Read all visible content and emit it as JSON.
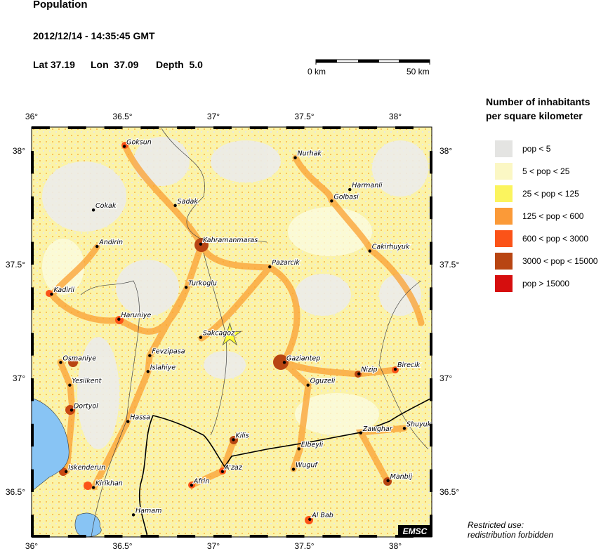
{
  "header": {
    "title": "Population",
    "datetime": "2012/12/14 - 14:35:45 GMT",
    "lat": "Lat 37.19",
    "lon": "Lon  37.09",
    "depth": "Depth  5.0"
  },
  "scale_bar": {
    "start_label": "0 km",
    "end_label": "50 km"
  },
  "map": {
    "lon_range": [
      36.0,
      38.2
    ],
    "lat_range": [
      36.3,
      38.1
    ],
    "lon_ticks": [
      {
        "v": 36,
        "label": "36°"
      },
      {
        "v": 36.5,
        "label": "36.5°"
      },
      {
        "v": 37,
        "label": "37°"
      },
      {
        "v": 37.5,
        "label": "37.5°"
      },
      {
        "v": 38,
        "label": "38°"
      }
    ],
    "lat_ticks": [
      {
        "v": 38,
        "label": "38°"
      },
      {
        "v": 37.5,
        "label": "37.5°"
      },
      {
        "v": 37,
        "label": "37°"
      },
      {
        "v": 36.5,
        "label": "36.5°"
      }
    ],
    "epicenter": {
      "lat": 37.19,
      "lon": 37.09,
      "icon": "star-icon",
      "color": "#ffff33"
    },
    "water_color": "#88c4f4",
    "cities": [
      {
        "name": "Goksun",
        "lon": 36.51,
        "lat": 38.02
      },
      {
        "name": "Nurhak",
        "lon": 37.45,
        "lat": 37.97
      },
      {
        "name": "Harmanli",
        "lon": 37.75,
        "lat": 37.83
      },
      {
        "name": "Golbasi",
        "lon": 37.65,
        "lat": 37.78
      },
      {
        "name": "Cokak",
        "lon": 36.34,
        "lat": 37.74
      },
      {
        "name": "Sadak",
        "lon": 36.79,
        "lat": 37.76
      },
      {
        "name": "Andirin",
        "lon": 36.36,
        "lat": 37.58
      },
      {
        "name": "Kahramanmaras",
        "lon": 36.93,
        "lat": 37.59
      },
      {
        "name": "Cakirhuyuk",
        "lon": 37.86,
        "lat": 37.56
      },
      {
        "name": "Pazarcik",
        "lon": 37.31,
        "lat": 37.49
      },
      {
        "name": "Kadirli",
        "lon": 36.11,
        "lat": 37.37
      },
      {
        "name": "Turkoglu",
        "lon": 36.85,
        "lat": 37.4
      },
      {
        "name": "Haruniye",
        "lon": 36.48,
        "lat": 37.26
      },
      {
        "name": "Sakcagoz",
        "lon": 36.93,
        "lat": 37.18
      },
      {
        "name": "Fevzipasa",
        "lon": 36.65,
        "lat": 37.1
      },
      {
        "name": "Osmaniye",
        "lon": 36.16,
        "lat": 37.07
      },
      {
        "name": "Islahiye",
        "lon": 36.64,
        "lat": 37.03
      },
      {
        "name": "Gaziantep",
        "lon": 37.39,
        "lat": 37.07
      },
      {
        "name": "Nizip",
        "lon": 37.8,
        "lat": 37.02
      },
      {
        "name": "Birecik",
        "lon": 38.0,
        "lat": 37.04
      },
      {
        "name": "Oguzeli",
        "lon": 37.52,
        "lat": 36.97
      },
      {
        "name": "Yesilkent",
        "lon": 36.21,
        "lat": 36.97
      },
      {
        "name": "Dortyol",
        "lon": 36.22,
        "lat": 36.86
      },
      {
        "name": "Hassa",
        "lon": 36.53,
        "lat": 36.81
      },
      {
        "name": "Shuyuk",
        "lon": 38.05,
        "lat": 36.78
      },
      {
        "name": "Zawghar",
        "lon": 37.81,
        "lat": 36.76
      },
      {
        "name": "Kilis",
        "lon": 37.11,
        "lat": 36.73
      },
      {
        "name": "Elbeyli",
        "lon": 37.47,
        "lat": 36.69
      },
      {
        "name": "Iskenderun",
        "lon": 36.19,
        "lat": 36.59
      },
      {
        "name": "A'zaz",
        "lon": 37.05,
        "lat": 36.59
      },
      {
        "name": "Wuguf",
        "lon": 37.44,
        "lat": 36.6
      },
      {
        "name": "Afrin",
        "lon": 36.88,
        "lat": 36.53
      },
      {
        "name": "Kirikhan",
        "lon": 36.34,
        "lat": 36.52
      },
      {
        "name": "Manbij",
        "lon": 37.96,
        "lat": 36.55
      },
      {
        "name": "Hamam",
        "lon": 36.56,
        "lat": 36.4
      },
      {
        "name": "Al Bab",
        "lon": 37.53,
        "lat": 36.38
      }
    ],
    "logo": "EMSC"
  },
  "legend": {
    "title_line1": "Number of inhabitants",
    "title_line2": "per square kilometer",
    "items": [
      {
        "label": "pop < 5",
        "color": "#e4e4e2"
      },
      {
        "label": "5 < pop < 25",
        "color": "#fbf7c4"
      },
      {
        "label": "25 < pop < 125",
        "color": "#fbf45e"
      },
      {
        "label": "125 < pop < 600",
        "color": "#fb9a38"
      },
      {
        "label": "600 < pop < 3000",
        "color": "#fb5318"
      },
      {
        "label": "3000 < pop < 15000",
        "color": "#b84512"
      },
      {
        "label": "pop > 15000",
        "color": "#d60e0e"
      }
    ]
  },
  "note": {
    "line1": "Restricted use:",
    "line2": "redistribution forbidden"
  }
}
